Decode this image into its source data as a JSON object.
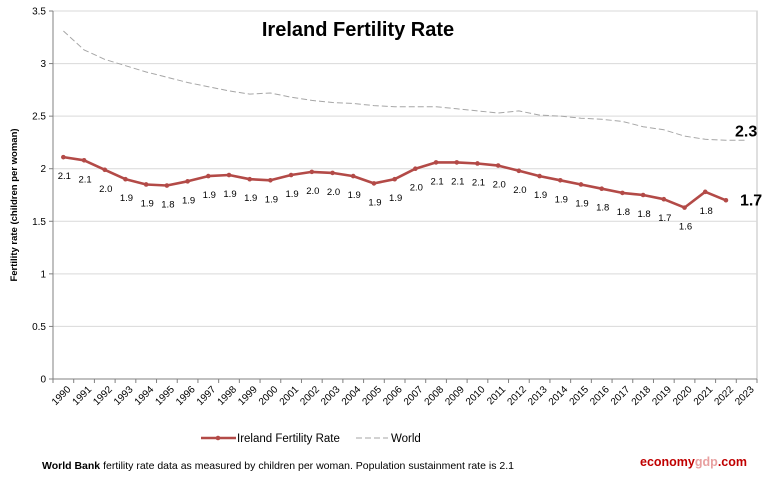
{
  "chart_data": {
    "type": "line",
    "title": "Ireland Fertility Rate",
    "ylabel": "Fertility rate (children per woman)",
    "xlabel": "",
    "ylim": [
      0,
      3.5
    ],
    "yticks": [
      "0",
      "0.5",
      "1",
      "1.5",
      "2",
      "2.5",
      "3",
      "3.5"
    ],
    "grid": true,
    "legend_position": "bottom",
    "categories": [
      "1990",
      "1991",
      "1992",
      "1993",
      "1994",
      "1995",
      "1996",
      "1997",
      "1998",
      "1999",
      "2000",
      "2001",
      "2002",
      "2003",
      "2004",
      "2005",
      "2006",
      "2007",
      "2008",
      "2009",
      "2010",
      "2011",
      "2012",
      "2013",
      "2014",
      "2015",
      "2016",
      "2017",
      "2018",
      "2019",
      "2020",
      "2021",
      "2022",
      "2023"
    ],
    "series": [
      {
        "name": "Ireland Fertility Rate",
        "color": "#b34a47",
        "style": "solid-marker",
        "values": [
          2.11,
          2.08,
          1.99,
          1.9,
          1.85,
          1.84,
          1.88,
          1.93,
          1.94,
          1.9,
          1.89,
          1.94,
          1.97,
          1.96,
          1.93,
          1.86,
          1.9,
          2.0,
          2.06,
          2.06,
          2.05,
          2.03,
          1.98,
          1.93,
          1.89,
          1.85,
          1.81,
          1.77,
          1.75,
          1.71,
          1.63,
          1.78,
          1.7,
          null
        ],
        "labels": [
          "2.1",
          "2.1",
          "2.0",
          "1.9",
          "1.9",
          "1.8",
          "1.9",
          "1.9",
          "1.9",
          "1.9",
          "1.9",
          "1.9",
          "2.0",
          "2.0",
          "1.9",
          "1.9",
          "1.9",
          "2.0",
          "2.1",
          "2.1",
          "2.1",
          "2.0",
          "2.0",
          "1.9",
          "1.9",
          "1.9",
          "1.8",
          "1.8",
          "1.8",
          "1.7",
          "1.6",
          "1.8",
          "",
          ""
        ],
        "end_label": "1.7"
      },
      {
        "name": "World",
        "color": "#a6a6a6",
        "style": "dashed",
        "values": [
          3.31,
          3.13,
          3.04,
          2.98,
          2.92,
          2.87,
          2.82,
          2.78,
          2.74,
          2.71,
          2.72,
          2.68,
          2.65,
          2.63,
          2.62,
          2.6,
          2.59,
          2.59,
          2.59,
          2.57,
          2.55,
          2.53,
          2.55,
          2.51,
          2.5,
          2.48,
          2.47,
          2.45,
          2.4,
          2.37,
          2.31,
          2.28,
          2.27,
          2.27
        ],
        "end_label": "2.3"
      }
    ]
  },
  "footnote": {
    "source": "World Bank",
    "text": " fertility rate data as measured by children per woman.  Population sustainment rate is 2.1"
  },
  "brand": {
    "part1": "economy",
    "part2": "gdp",
    "part3": ".com",
    "color_dark": "#c00000",
    "color_light": "#e8a0a0"
  }
}
